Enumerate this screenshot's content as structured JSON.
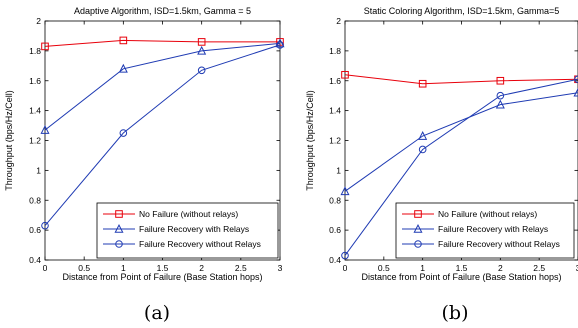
{
  "chart_data": [
    {
      "type": "line",
      "title": "Adaptive Algorithm, ISD=1.5km, Gamma = 5",
      "xlabel": "Distance from Point of Failure (Base Station hops)",
      "ylabel": "Throughput (bps/Hz/Cell)",
      "xlim": [
        0,
        3
      ],
      "ylim": [
        0.4,
        2
      ],
      "xticks": [
        0,
        0.5,
        1,
        1.5,
        2,
        2.5,
        3
      ],
      "yticks": [
        0.4,
        0.6,
        0.8,
        1,
        1.2,
        1.4,
        1.6,
        1.8,
        2
      ],
      "grid": false,
      "legend_position": "bottom-right",
      "sublabel": "(a)",
      "series": [
        {
          "name": "No Failure (without relays)",
          "color": "#e8000b",
          "marker": "square",
          "x": [
            0,
            1,
            2,
            3
          ],
          "y": [
            1.83,
            1.87,
            1.86,
            1.86
          ]
        },
        {
          "name": "Failure Recovery with Relays",
          "color": "#1f3bb3",
          "marker": "triangle",
          "x": [
            0,
            1,
            2,
            3
          ],
          "y": [
            1.27,
            1.68,
            1.8,
            1.85
          ]
        },
        {
          "name": "Failure Recovery without Relays",
          "color": "#1f3bb3",
          "marker": "circle",
          "x": [
            0,
            1,
            2,
            3
          ],
          "y": [
            0.63,
            1.25,
            1.67,
            1.84
          ]
        }
      ]
    },
    {
      "type": "line",
      "title": "Static Coloring Algorithm, ISD=1.5km, Gamma=5",
      "xlabel": "Distance from Point of Failure (Base Station hops)",
      "ylabel": "Throughput (bps/Hz/Cell)",
      "xlim": [
        0,
        3
      ],
      "ylim": [
        0.4,
        2
      ],
      "xticks": [
        0,
        0.5,
        1,
        1.5,
        2,
        2.5,
        3
      ],
      "yticks": [
        0.4,
        0.6,
        0.8,
        1,
        1.2,
        1.4,
        1.6,
        1.8,
        2
      ],
      "grid": false,
      "legend_position": "bottom-right",
      "sublabel": "(b)",
      "series": [
        {
          "name": "No Failure (without relays)",
          "color": "#e8000b",
          "marker": "square",
          "x": [
            0,
            1,
            2,
            3
          ],
          "y": [
            1.64,
            1.58,
            1.6,
            1.61
          ]
        },
        {
          "name": "Failure Recovery with Relays",
          "color": "#1f3bb3",
          "marker": "triangle",
          "x": [
            0,
            1,
            2,
            3
          ],
          "y": [
            0.86,
            1.23,
            1.44,
            1.52
          ]
        },
        {
          "name": "Failure Recovery without Relays",
          "color": "#1f3bb3",
          "marker": "circle",
          "x": [
            0,
            1,
            2,
            3
          ],
          "y": [
            0.43,
            1.14,
            1.5,
            1.61
          ]
        }
      ]
    }
  ]
}
